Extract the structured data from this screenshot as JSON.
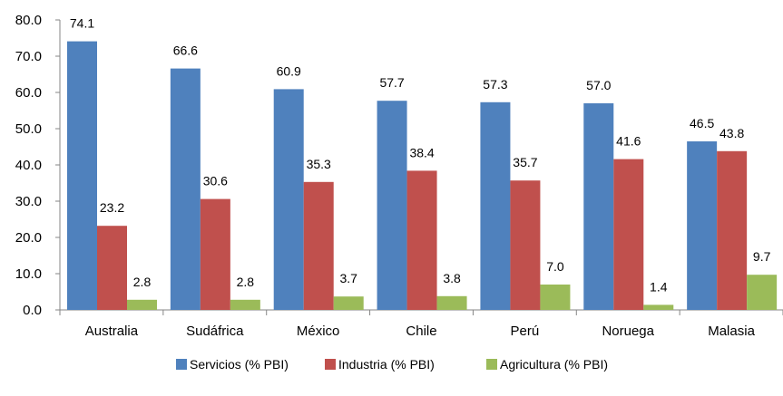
{
  "chart_data": {
    "type": "bar",
    "categories": [
      "Australia",
      "Sudáfrica",
      "México",
      "Chile",
      "Perú",
      "Noruega",
      "Malasia"
    ],
    "series": [
      {
        "name": "Servicios (% PBI)",
        "color": "#4F81BD",
        "values": [
          74.1,
          66.6,
          60.9,
          57.7,
          57.3,
          57.0,
          46.5
        ],
        "labels": [
          "74.1",
          "66.6",
          "60.9",
          "57.7",
          "57.3",
          "57.0",
          "46.5"
        ]
      },
      {
        "name": "Industria (% PBI)",
        "color": "#C0504D",
        "values": [
          23.2,
          30.6,
          35.3,
          38.4,
          35.7,
          41.6,
          43.8
        ],
        "labels": [
          "23.2",
          "30.6",
          "35.3",
          "38.4",
          "35.7",
          "41.6",
          "43.8"
        ]
      },
      {
        "name": "Agricultura (% PBI)",
        "color": "#9BBB59",
        "values": [
          2.8,
          2.8,
          3.7,
          3.8,
          7.0,
          1.4,
          9.7
        ],
        "labels": [
          "2.8",
          "2.8",
          "3.7",
          "3.8",
          "7.0",
          "1.4",
          "9.7"
        ]
      }
    ],
    "yticks": [
      "0.0",
      "10.0",
      "20.0",
      "30.0",
      "40.0",
      "50.0",
      "60.0",
      "70.0",
      "80.0"
    ],
    "ylim": [
      0,
      80
    ],
    "grid": false,
    "legend_position": "bottom",
    "title": "",
    "xlabel": "",
    "ylabel": ""
  }
}
